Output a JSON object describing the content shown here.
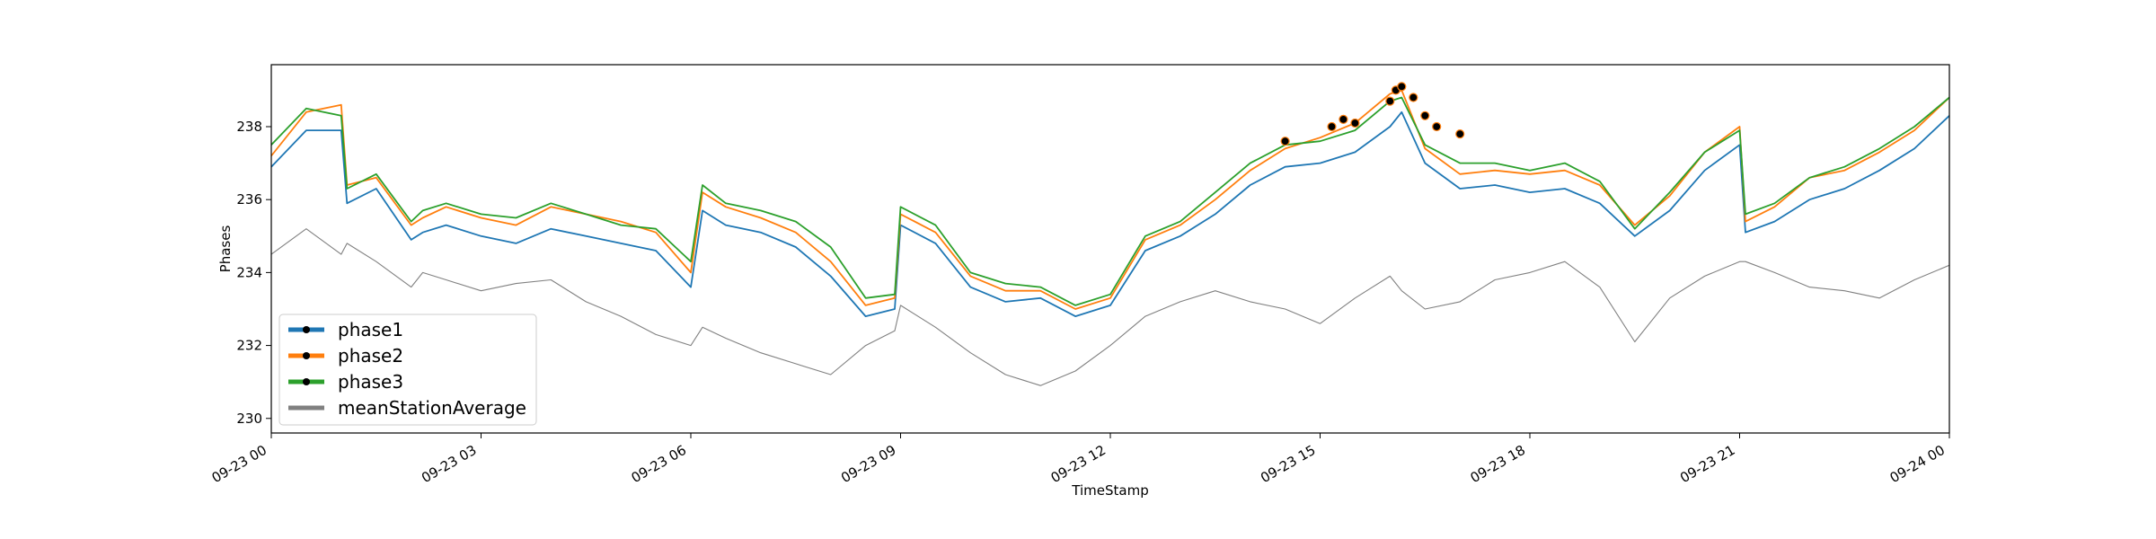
{
  "chart_data": {
    "type": "line",
    "title": "",
    "xlabel": "TimeStamp",
    "ylabel": "Phases",
    "xlim": [
      "09-23 00",
      "09-24 00"
    ],
    "ylim": [
      229.6,
      239.7
    ],
    "grid": false,
    "legend_position": "lower-left",
    "x_ticks": [
      "09-23 00",
      "09-23 03",
      "09-23 06",
      "09-23 09",
      "09-23 12",
      "09-23 15",
      "09-23 18",
      "09-23 21",
      "09-24 00"
    ],
    "y_ticks": [
      "230",
      "232",
      "234",
      "236",
      "238"
    ],
    "x": [
      "09-23 00:00",
      "09-23 00:30",
      "09-23 01:00",
      "09-23 01:05",
      "09-23 01:30",
      "09-23 02:00",
      "09-23 02:10",
      "09-23 02:30",
      "09-23 03:00",
      "09-23 03:30",
      "09-23 04:00",
      "09-23 04:30",
      "09-23 05:00",
      "09-23 05:30",
      "09-23 06:00",
      "09-23 06:10",
      "09-23 06:30",
      "09-23 07:00",
      "09-23 07:30",
      "09-23 08:00",
      "09-23 08:30",
      "09-23 08:55",
      "09-23 09:00",
      "09-23 09:30",
      "09-23 10:00",
      "09-23 10:30",
      "09-23 11:00",
      "09-23 11:30",
      "09-23 12:00",
      "09-23 12:30",
      "09-23 13:00",
      "09-23 13:30",
      "09-23 14:00",
      "09-23 14:30",
      "09-23 15:00",
      "09-23 15:30",
      "09-23 16:00",
      "09-23 16:10",
      "09-23 16:30",
      "09-23 17:00",
      "09-23 17:30",
      "09-23 18:00",
      "09-23 18:30",
      "09-23 19:00",
      "09-23 19:30",
      "09-23 20:00",
      "09-23 20:30",
      "09-23 21:00",
      "09-23 21:05",
      "09-23 21:30",
      "09-23 22:00",
      "09-23 22:30",
      "09-23 23:00",
      "09-23 23:30",
      "09-24 00:00"
    ],
    "series": [
      {
        "name": "phase1",
        "color": "#1f77b4",
        "values": [
          236.9,
          237.9,
          237.9,
          235.9,
          236.3,
          234.9,
          235.1,
          235.3,
          235.0,
          234.8,
          235.2,
          235.0,
          234.8,
          234.6,
          233.6,
          235.7,
          235.3,
          235.1,
          234.7,
          233.9,
          232.8,
          233.0,
          235.3,
          234.8,
          233.6,
          233.2,
          233.3,
          232.8,
          233.1,
          234.6,
          235.0,
          235.6,
          236.4,
          236.9,
          237.0,
          237.3,
          238.0,
          238.4,
          237.0,
          236.3,
          236.4,
          236.2,
          236.3,
          235.9,
          235.0,
          235.7,
          236.8,
          237.5,
          235.1,
          235.4,
          236.0,
          236.3,
          236.8,
          237.4,
          238.3
        ]
      },
      {
        "name": "phase2",
        "color": "#ff7f0e",
        "values": [
          237.2,
          238.4,
          238.6,
          236.4,
          236.6,
          235.3,
          235.5,
          235.8,
          235.5,
          235.3,
          235.8,
          235.6,
          235.4,
          235.1,
          234.0,
          236.2,
          235.8,
          235.5,
          235.1,
          234.3,
          233.1,
          233.3,
          235.6,
          235.1,
          233.9,
          233.5,
          233.5,
          233.0,
          233.3,
          234.9,
          235.3,
          236.0,
          236.8,
          237.4,
          237.7,
          238.1,
          238.9,
          239.0,
          237.4,
          236.7,
          236.8,
          236.7,
          236.8,
          236.4,
          235.3,
          236.1,
          237.3,
          238.0,
          235.4,
          235.8,
          236.6,
          236.8,
          237.3,
          237.9,
          238.8
        ]
      },
      {
        "name": "phase3",
        "color": "#2ca02c",
        "values": [
          237.5,
          238.5,
          238.3,
          236.3,
          236.7,
          235.4,
          235.7,
          235.9,
          235.6,
          235.5,
          235.9,
          235.6,
          235.3,
          235.2,
          234.3,
          236.4,
          235.9,
          235.7,
          235.4,
          234.7,
          233.3,
          233.4,
          235.8,
          235.3,
          234.0,
          233.7,
          233.6,
          233.1,
          233.4,
          235.0,
          235.4,
          236.2,
          237.0,
          237.5,
          237.6,
          237.9,
          238.7,
          238.8,
          237.5,
          237.0,
          237.0,
          236.8,
          237.0,
          236.5,
          235.2,
          236.2,
          237.3,
          237.9,
          235.6,
          235.9,
          236.6,
          236.9,
          237.4,
          238.0,
          238.8
        ]
      },
      {
        "name": "meanStationAverage",
        "color": "#808080",
        "values": [
          234.5,
          235.2,
          234.5,
          234.8,
          234.3,
          233.6,
          234.0,
          233.8,
          233.5,
          233.7,
          233.8,
          233.2,
          232.8,
          232.3,
          232.0,
          232.5,
          232.2,
          231.8,
          231.5,
          231.2,
          232.0,
          232.4,
          233.1,
          232.5,
          231.8,
          231.2,
          230.9,
          231.3,
          232.0,
          232.8,
          233.2,
          233.5,
          233.2,
          233.0,
          232.6,
          233.3,
          233.9,
          233.5,
          233.0,
          233.2,
          233.8,
          234.0,
          234.3,
          233.6,
          232.1,
          233.3,
          233.9,
          234.3,
          234.3,
          234.0,
          233.6,
          233.5,
          233.3,
          233.8,
          234.2
        ]
      }
    ],
    "markers": {
      "x": [
        "09-23 14:30",
        "09-23 15:10",
        "09-23 15:20",
        "09-23 15:30",
        "09-23 16:00",
        "09-23 16:05",
        "09-23 16:10",
        "09-23 16:20",
        "09-23 16:30",
        "09-23 16:40",
        "09-23 17:00"
      ],
      "y": [
        237.6,
        238.0,
        238.2,
        238.1,
        238.7,
        239.0,
        239.1,
        238.8,
        238.3,
        238.0,
        237.8
      ]
    }
  }
}
